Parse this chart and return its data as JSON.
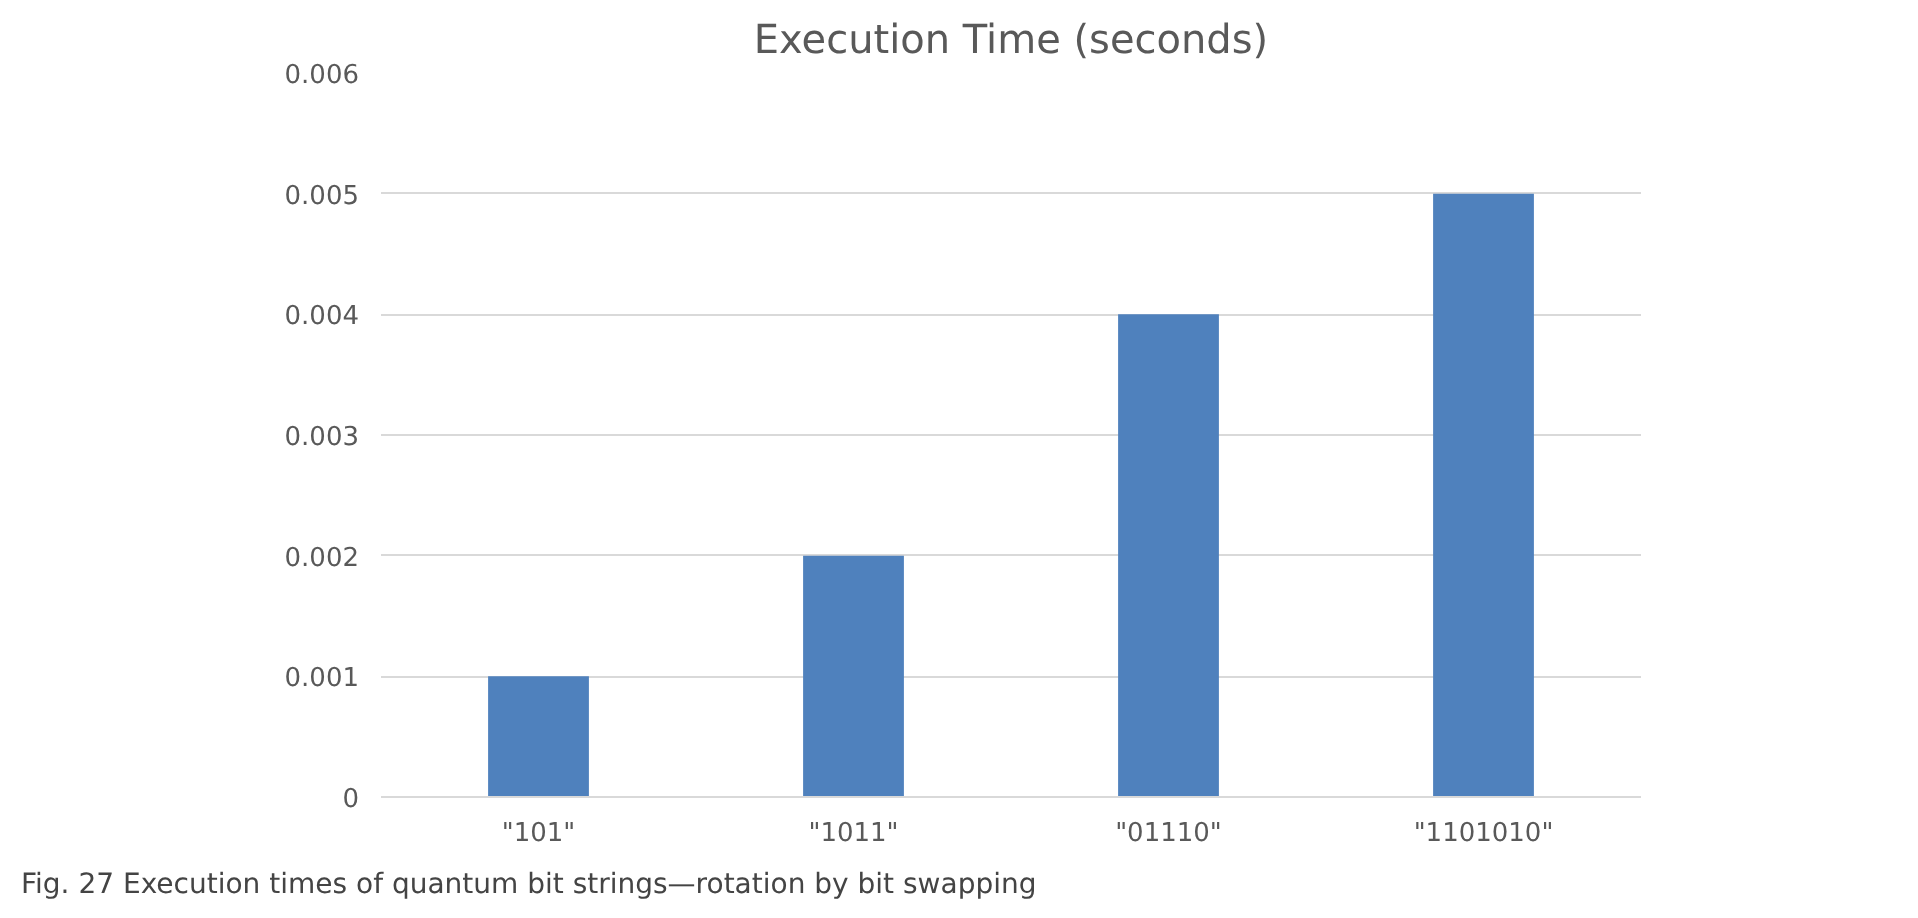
{
  "chart_data": {
    "type": "bar",
    "title": "Execution Time (seconds)",
    "categories": [
      "\"101\"",
      "\"1011\"",
      "\"01110\"",
      "\"1101010\""
    ],
    "values": [
      0.001,
      0.002,
      0.004,
      0.005
    ],
    "color": "#4f81bd",
    "ylim": [
      0,
      0.006
    ],
    "yticks": [
      0,
      0.001,
      0.002,
      0.003,
      0.004,
      0.005,
      0.006
    ],
    "grid": "y",
    "annotations": [
      "Fig. 27  Execution times of quantum bit strings—rotation by bit swapping"
    ]
  }
}
